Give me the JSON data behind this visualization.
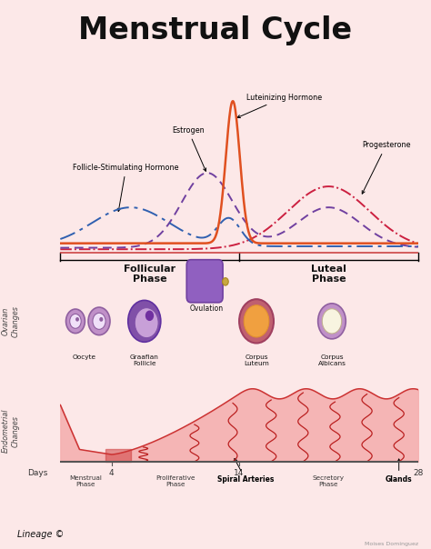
{
  "title": "Menstrual Cycle",
  "bg_color": "#fce8e8",
  "title_fontsize": 24,
  "title_fontweight": "bold",
  "hormone_labels": [
    "Luteinizing Hormone",
    "Estrogen",
    "Progesterone",
    "Follicle-Stimulating Hormone"
  ],
  "phase_labels": [
    "Follicular\nPhase",
    "Luteal\nPhase"
  ],
  "ovarian_changes_label": "Ovarian\nChanges",
  "endometrial_label": "Endometrial\nChanges",
  "days_label": "Days",
  "day_ticks": [
    4,
    14,
    28
  ],
  "phase_bottom_labels": [
    "Menstrual\nPhase",
    "Proliferative\nPhase",
    "Secretory\nPhase"
  ],
  "lineage_text": "Lineage ©",
  "watermark": "Moises Dominguez"
}
